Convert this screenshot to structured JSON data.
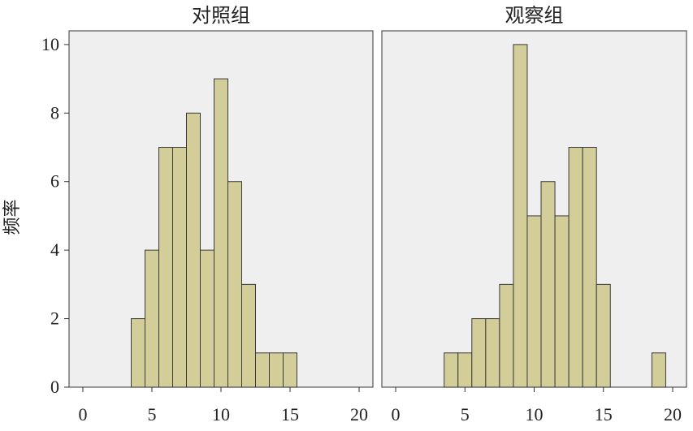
{
  "chart_data": {
    "type": "bar",
    "ylabel": "频率",
    "ylim": [
      0,
      10.4
    ],
    "yticks": [
      0,
      2,
      4,
      6,
      8,
      10
    ],
    "xlim": [
      -1,
      21
    ],
    "xticks": [
      0,
      5,
      10,
      15,
      20
    ],
    "bin_width": 1,
    "bar_fill": "#d3ce99",
    "bar_stroke": "#3a3a3a",
    "panel_background": "#efefef",
    "grid": false,
    "panels": [
      {
        "title": "对照组",
        "bins": [
          {
            "x": 4,
            "count": 2
          },
          {
            "x": 5,
            "count": 4
          },
          {
            "x": 6,
            "count": 7
          },
          {
            "x": 7,
            "count": 7
          },
          {
            "x": 8,
            "count": 8
          },
          {
            "x": 9,
            "count": 4
          },
          {
            "x": 10,
            "count": 9
          },
          {
            "x": 11,
            "count": 6
          },
          {
            "x": 12,
            "count": 3
          },
          {
            "x": 13,
            "count": 1
          },
          {
            "x": 14,
            "count": 1
          },
          {
            "x": 15,
            "count": 1
          }
        ]
      },
      {
        "title": "观察组",
        "bins": [
          {
            "x": 4,
            "count": 1
          },
          {
            "x": 5,
            "count": 1
          },
          {
            "x": 6,
            "count": 2
          },
          {
            "x": 7,
            "count": 2
          },
          {
            "x": 8,
            "count": 3
          },
          {
            "x": 9,
            "count": 10
          },
          {
            "x": 10,
            "count": 5
          },
          {
            "x": 11,
            "count": 6
          },
          {
            "x": 12,
            "count": 5
          },
          {
            "x": 13,
            "count": 7
          },
          {
            "x": 14,
            "count": 7
          },
          {
            "x": 15,
            "count": 3
          },
          {
            "x": 19,
            "count": 1
          }
        ]
      }
    ]
  }
}
